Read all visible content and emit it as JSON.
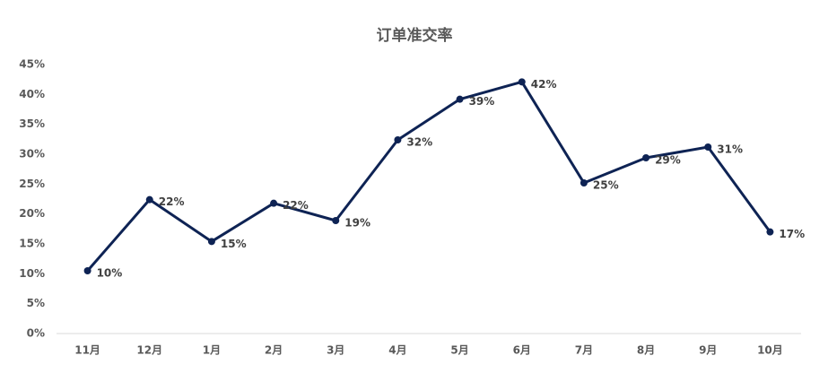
{
  "chart_data": {
    "type": "line",
    "title": "订单准交率",
    "categories": [
      "11月",
      "12月",
      "1月",
      "2月",
      "3月",
      "4月",
      "5月",
      "6月",
      "7月",
      "8月",
      "9月",
      "10月"
    ],
    "series": [
      {
        "color": "#0e2354",
        "values": [
          10.5,
          22.4,
          15.4,
          21.8,
          18.9,
          32.4,
          39.2,
          42.1,
          25.2,
          29.4,
          31.2,
          17.0
        ],
        "value_labels": [
          "10%",
          "22%",
          "15%",
          "22%",
          "19%",
          "32%",
          "39%",
          "42%",
          "25%",
          "29%",
          "31%",
          "17%"
        ]
      }
    ],
    "ylim": [
      0,
      45
    ],
    "yticks": [
      {
        "value": 0,
        "label": "0%"
      },
      {
        "value": 5,
        "label": "5%"
      },
      {
        "value": 10,
        "label": "10%"
      },
      {
        "value": 15,
        "label": "15%"
      },
      {
        "value": 20,
        "label": "20%"
      },
      {
        "value": 25,
        "label": "25%"
      },
      {
        "value": 30,
        "label": "30%"
      },
      {
        "value": 35,
        "label": "35%"
      },
      {
        "value": 40,
        "label": "40%"
      },
      {
        "value": 45,
        "label": "45%"
      }
    ],
    "grid": false
  }
}
